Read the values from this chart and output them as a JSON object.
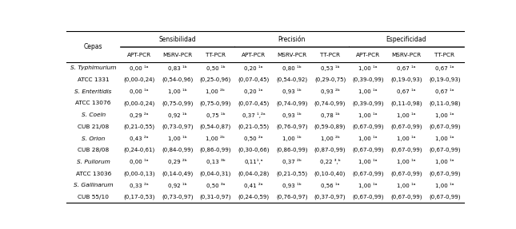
{
  "col_group_labels": [
    "Sensibilidad",
    "Precisión",
    "Especificidad"
  ],
  "col_sub_labels": [
    "APT-PCR",
    "MSRV-PCR",
    "TT-PCR",
    "APT-PCR",
    "MSRV-PCR",
    "TT-PCR",
    "APT-PCR",
    "MSRV-PCR",
    "TT-PCR"
  ],
  "rows": [
    {
      "name": "S. Typhimurium",
      "italic": true,
      "vals": [
        "0,00 ¹ᵃ",
        "0,83 ¹ᵇ",
        "0,50 ¹ᵇ",
        "0,20 ¹ᵃ",
        "0,80 ¹ᵇ",
        "0,53 ¹ᵇ",
        "1,00 ¹ᵃ",
        "0,67 ¹ᵃ",
        "0,67 ¹ᵃ"
      ]
    },
    {
      "name": "ATCC 1331",
      "italic": false,
      "vals": [
        "(0,00-0,24)",
        "(0,54-0,96)",
        "(0,25-0,96)",
        "(0,07-0,45)",
        "(0,54-0,92)",
        "(0,29-0,75)",
        "(0,39-0,99)",
        "(0,19-0,93)",
        "(0,19-0,93)"
      ]
    },
    {
      "name": "S. Enteritidis",
      "italic": true,
      "vals": [
        "0,00 ¹ᵃ",
        "1,00 ¹ᵇ",
        "1,00 ²ᵇ",
        "0,20 ¹ᵃ",
        "0,93 ¹ᵇ",
        "0,93 ²ᵇ",
        "1,00 ¹ᵃ",
        "0,67 ¹ᵃ",
        "0,67 ¹ᵃ"
      ]
    },
    {
      "name": "ATCC 13076",
      "italic": false,
      "vals": [
        "(0,00-0,24)",
        "(0,75-0,99)",
        "(0,75-0,99)",
        "(0,07-0,45)",
        "(0,74-0,99)",
        "(0,74-0,99)",
        "(0,39-0,99)",
        "(0,11-0,98)",
        "(0,11-0,98)"
      ]
    },
    {
      "name": "S. Coeln",
      "italic": true,
      "vals": [
        "0,29 ²ᵃ",
        "0,92 ¹ᵇ",
        "0,75 ¹ᵇ",
        "0,37 ¹,²ᵃ",
        "0,93 ¹ᵇ",
        "0,78 ¹ᵇ",
        "1,00 ¹ᵃ",
        "1,00 ¹ᵃ",
        "1,00 ¹ᵃ"
      ]
    },
    {
      "name": "CUB 21/08",
      "italic": false,
      "vals": [
        "(0,21-0,55)",
        "(0,73-0,97)",
        "(0,54-0,87)",
        "(0,21-0,55)",
        "(0,76-0,97)",
        "(0,59-0,89)",
        "(0,67-0,99)",
        "(0,67-0,99)",
        "(0,67-0,99)"
      ]
    },
    {
      "name": "S. Orion",
      "italic": true,
      "vals": [
        "0,43 ²ᵃ",
        "1,00 ¹ᵇ",
        "1,00 ²ᵇ",
        "0,50 ²ᵃ",
        "1,00 ¹ᵇ",
        "1,00 ²ᵇ",
        "1,00 ¹ᵃ",
        "1,00 ¹ᵃ",
        "1,00 ¹ᵃ"
      ]
    },
    {
      "name": "CUB 28/08",
      "italic": false,
      "vals": [
        "(0,24-0,61)",
        "(0,84-0,99)",
        "(0,86-0,99)",
        "(0,30-0,66)",
        "(0,86-0,99)",
        "(0,87-0,99)",
        "(0,67-0,99)",
        "(0,67-0,99)",
        "(0,67-0,99)"
      ]
    },
    {
      "name": "S. Pullorum",
      "italic": true,
      "vals": [
        "0,00 ¹ᵃ",
        "0,29 ²ᵇ",
        "0,13 ³ᵇ",
        "0,11¹,ᵃ",
        "0,37 ²ᵇ",
        "0,22 ³,ᵇ",
        "1,00 ¹ᵃ",
        "1,00 ¹ᵃ",
        "1,00 ¹ᵃ"
      ]
    },
    {
      "name": "ATCC 13036",
      "italic": false,
      "vals": [
        "(0,00-0,13)",
        "(0,14-0,49)",
        "(0,04-0,31)",
        "(0,04-0,28)",
        "(0,21-0,55)",
        "(0,10-0,40)",
        "(0,67-0,99)",
        "(0,67-0,99)",
        "(0,67-0,99)"
      ]
    },
    {
      "name": "S. Gallinarum",
      "italic": true,
      "vals": [
        "0,33 ²ᵃ",
        "0,92 ¹ᵇ",
        "0,50 ³ᵃ",
        "0,41 ²ᵃ",
        "0,93 ¹ᵇ",
        "0,56 ¹ᵃ",
        "1,00 ¹ᵃ",
        "1,00 ¹ᵃ",
        "1,00 ¹ᵃ"
      ]
    },
    {
      "name": "CUB 55/10",
      "italic": false,
      "vals": [
        "(0,17-0,53)",
        "(0,73-0,97)",
        "(0,31-0,97)",
        "(0,24-0,59)",
        "(0,76-0,97)",
        "(0,37-0,97)",
        "(0,67-0,99)",
        "(0,67-0,99)",
        "(0,67-0,99)"
      ]
    }
  ],
  "bg_color": "#ffffff",
  "text_color": "#000000",
  "header_fontsize": 5.5,
  "cell_fontsize": 5.0,
  "name_fontsize": 5.3,
  "cepas_label_fontsize": 5.5
}
